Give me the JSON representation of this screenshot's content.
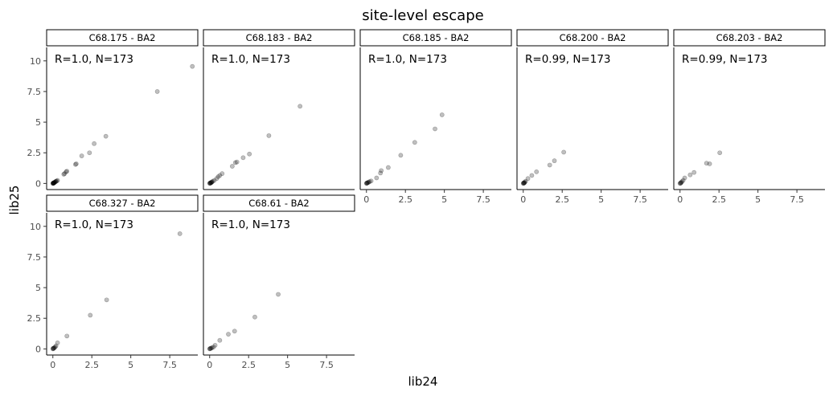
{
  "chart_data": {
    "type": "scatter",
    "title": "site-level escape",
    "xlabel": "lib24",
    "ylabel": "lib25",
    "xlim": [
      -0.4,
      9.3
    ],
    "ylim": [
      -0.5,
      11.1
    ],
    "xticks": [
      0,
      2.5,
      5,
      7.5
    ],
    "xtick_labels": [
      "0",
      "2.5",
      "5",
      "7.5"
    ],
    "yticks": [
      0,
      2.5,
      5,
      7.5,
      10
    ],
    "ytick_labels": [
      "0",
      "2.5",
      "5",
      "7.5",
      "10"
    ],
    "point_color": "#000000",
    "point_alpha": 0.25,
    "panels": [
      {
        "label": "C68.175 - BA2",
        "annotation": "R=1.0, N=173",
        "points": [
          [
            8.95,
            9.55
          ],
          [
            6.7,
            7.5
          ],
          [
            3.4,
            3.85
          ],
          [
            2.65,
            3.25
          ],
          [
            2.35,
            2.5
          ],
          [
            1.85,
            2.25
          ],
          [
            1.5,
            1.6
          ],
          [
            1.45,
            1.55
          ],
          [
            0.9,
            1.0
          ],
          [
            0.85,
            0.95
          ],
          [
            0.7,
            0.75
          ],
          [
            0.75,
            0.8
          ],
          [
            0.3,
            0.25
          ],
          [
            0.25,
            0.2
          ],
          [
            0.2,
            0.18
          ],
          [
            0.15,
            0.12
          ],
          [
            0.12,
            0.1
          ],
          [
            0.1,
            0.08
          ],
          [
            0.08,
            0.05
          ],
          [
            0.05,
            0.04
          ],
          [
            0.03,
            0.02
          ],
          [
            0.02,
            0.01
          ],
          [
            0.0,
            0.0
          ],
          [
            0.01,
            0.03
          ],
          [
            0.04,
            0.01
          ],
          [
            0.06,
            0.06
          ],
          [
            0.18,
            0.15
          ]
        ]
      },
      {
        "label": "C68.183 - BA2",
        "annotation": "R=1.0, N=173",
        "points": [
          [
            5.8,
            6.3
          ],
          [
            3.8,
            3.9
          ],
          [
            2.55,
            2.4
          ],
          [
            2.15,
            2.1
          ],
          [
            1.75,
            1.75
          ],
          [
            1.65,
            1.7
          ],
          [
            1.45,
            1.4
          ],
          [
            0.8,
            0.8
          ],
          [
            0.65,
            0.65
          ],
          [
            0.55,
            0.55
          ],
          [
            0.45,
            0.4
          ],
          [
            0.3,
            0.25
          ],
          [
            0.2,
            0.18
          ],
          [
            0.15,
            0.12
          ],
          [
            0.1,
            0.08
          ],
          [
            0.08,
            0.05
          ],
          [
            0.05,
            0.03
          ],
          [
            0.03,
            0.02
          ],
          [
            0.0,
            0.0
          ],
          [
            0.02,
            0.04
          ],
          [
            0.12,
            0.1
          ]
        ]
      },
      {
        "label": "C68.185 - BA2",
        "annotation": "R=1.0, N=173",
        "points": [
          [
            4.85,
            5.6
          ],
          [
            4.4,
            4.45
          ],
          [
            3.1,
            3.35
          ],
          [
            2.2,
            2.3
          ],
          [
            1.4,
            1.3
          ],
          [
            0.95,
            1.05
          ],
          [
            0.9,
            0.85
          ],
          [
            0.65,
            0.45
          ],
          [
            0.3,
            0.2
          ],
          [
            0.2,
            0.15
          ],
          [
            0.15,
            0.1
          ],
          [
            0.1,
            0.08
          ],
          [
            0.06,
            0.05
          ],
          [
            0.03,
            0.02
          ],
          [
            0.0,
            0.0
          ],
          [
            0.02,
            0.04
          ]
        ]
      },
      {
        "label": "C68.200 - BA2",
        "annotation": "R=0.99, N=173",
        "points": [
          [
            2.6,
            2.55
          ],
          [
            2.0,
            1.85
          ],
          [
            1.7,
            1.5
          ],
          [
            0.85,
            0.95
          ],
          [
            0.55,
            0.65
          ],
          [
            0.3,
            0.4
          ],
          [
            0.15,
            0.18
          ],
          [
            0.1,
            0.1
          ],
          [
            0.08,
            0.06
          ],
          [
            0.05,
            0.03
          ],
          [
            0.02,
            0.02
          ],
          [
            0.0,
            0.0
          ],
          [
            0.03,
            0.05
          ]
        ]
      },
      {
        "label": "C68.203 - BA2",
        "annotation": "R=0.99, N=173",
        "points": [
          [
            2.55,
            2.5
          ],
          [
            1.9,
            1.6
          ],
          [
            1.7,
            1.65
          ],
          [
            0.9,
            0.9
          ],
          [
            0.65,
            0.7
          ],
          [
            0.3,
            0.45
          ],
          [
            0.2,
            0.25
          ],
          [
            0.12,
            0.15
          ],
          [
            0.08,
            0.08
          ],
          [
            0.05,
            0.04
          ],
          [
            0.02,
            0.02
          ],
          [
            0.0,
            0.0
          ]
        ]
      },
      {
        "label": "C68.327 - BA2",
        "annotation": "R=1.0, N=173",
        "points": [
          [
            8.15,
            9.4
          ],
          [
            3.45,
            4.0
          ],
          [
            2.4,
            2.75
          ],
          [
            0.9,
            1.05
          ],
          [
            0.3,
            0.5
          ],
          [
            0.2,
            0.25
          ],
          [
            0.15,
            0.15
          ],
          [
            0.1,
            0.1
          ],
          [
            0.06,
            0.06
          ],
          [
            0.03,
            0.03
          ],
          [
            0.0,
            0.0
          ],
          [
            0.02,
            0.05
          ]
        ]
      },
      {
        "label": "C68.61 - BA2",
        "annotation": "R=1.0, N=173",
        "points": [
          [
            4.4,
            4.45
          ],
          [
            2.9,
            2.6
          ],
          [
            1.6,
            1.45
          ],
          [
            1.2,
            1.2
          ],
          [
            0.65,
            0.7
          ],
          [
            0.35,
            0.3
          ],
          [
            0.25,
            0.15
          ],
          [
            0.15,
            0.1
          ],
          [
            0.1,
            0.06
          ],
          [
            0.05,
            0.04
          ],
          [
            0.02,
            0.02
          ],
          [
            0.0,
            0.0
          ]
        ]
      }
    ]
  }
}
